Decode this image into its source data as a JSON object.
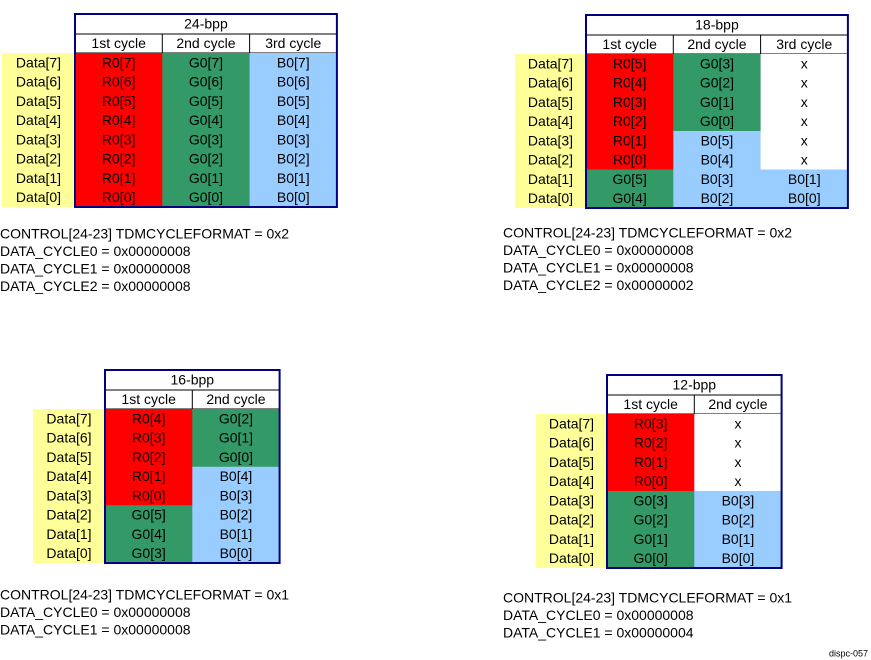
{
  "panels": [
    {
      "title": "24-bpp",
      "columns": [
        "1st cycle",
        "2nd cycle",
        "3rd cycle"
      ],
      "rows": [
        {
          "label": "Data[7]",
          "cells": [
            "R0[7]",
            "G0[7]",
            "B0[7]"
          ]
        },
        {
          "label": "Data[6]",
          "cells": [
            "R0[6]",
            "G0[6]",
            "B0[6]"
          ]
        },
        {
          "label": "Data[5]",
          "cells": [
            "R0[5]",
            "G0[5]",
            "B0[5]"
          ]
        },
        {
          "label": "Data[4]",
          "cells": [
            "R0[4]",
            "G0[4]",
            "B0[4]"
          ]
        },
        {
          "label": "Data[3]",
          "cells": [
            "R0[3]",
            "G0[3]",
            "B0[3]"
          ]
        },
        {
          "label": "Data[2]",
          "cells": [
            "R0[2]",
            "G0[2]",
            "B0[2]"
          ]
        },
        {
          "label": "Data[1]",
          "cells": [
            "R0[1]",
            "G0[1]",
            "B0[1]"
          ]
        },
        {
          "label": "Data[0]",
          "cells": [
            "R0[0]",
            "G0[0]",
            "B0[0]"
          ]
        }
      ],
      "config": [
        "CONTROL[24-23] TDMCYCLEFORMAT = 0x2",
        "DATA_CYCLE0 = 0x00000008",
        "DATA_CYCLE1 = 0x00000008",
        "DATA_CYCLE2 = 0x00000008"
      ]
    },
    {
      "title": "18-bpp",
      "columns": [
        "1st cycle",
        "2nd cycle",
        "3rd cycle"
      ],
      "rows": [
        {
          "label": "Data[7]",
          "cells": [
            "R0[5]",
            "G0[3]",
            "x"
          ]
        },
        {
          "label": "Data[6]",
          "cells": [
            "R0[4]",
            "G0[2]",
            "x"
          ]
        },
        {
          "label": "Data[5]",
          "cells": [
            "R0[3]",
            "G0[1]",
            "x"
          ]
        },
        {
          "label": "Data[4]",
          "cells": [
            "R0[2]",
            "G0[0]",
            "x"
          ]
        },
        {
          "label": "Data[3]",
          "cells": [
            "R0[1]",
            "B0[5]",
            "x"
          ]
        },
        {
          "label": "Data[2]",
          "cells": [
            "R0[0]",
            "B0[4]",
            "x"
          ]
        },
        {
          "label": "Data[1]",
          "cells": [
            "G0[5]",
            "B0[3]",
            "B0[1]"
          ]
        },
        {
          "label": "Data[0]",
          "cells": [
            "G0[4]",
            "B0[2]",
            "B0[0]"
          ]
        }
      ],
      "config": [
        "CONTROL[24-23] TDMCYCLEFORMAT = 0x2",
        "DATA_CYCLE0 = 0x00000008",
        "DATA_CYCLE1 = 0x00000008",
        "DATA_CYCLE2 = 0x00000002"
      ]
    },
    {
      "title": "16-bpp",
      "columns": [
        "1st cycle",
        "2nd cycle"
      ],
      "rows": [
        {
          "label": "Data[7]",
          "cells": [
            "R0[4]",
            "G0[2]"
          ]
        },
        {
          "label": "Data[6]",
          "cells": [
            "R0[3]",
            "G0[1]"
          ]
        },
        {
          "label": "Data[5]",
          "cells": [
            "R0[2]",
            "G0[0]"
          ]
        },
        {
          "label": "Data[4]",
          "cells": [
            "R0[1]",
            "B0[4]"
          ]
        },
        {
          "label": "Data[3]",
          "cells": [
            "R0[0]",
            "B0[3]"
          ]
        },
        {
          "label": "Data[2]",
          "cells": [
            "G0[5]",
            "B0[2]"
          ]
        },
        {
          "label": "Data[1]",
          "cells": [
            "G0[4]",
            "B0[1]"
          ]
        },
        {
          "label": "Data[0]",
          "cells": [
            "G0[3]",
            "B0[0]"
          ]
        }
      ],
      "config": [
        "CONTROL[24-23] TDMCYCLEFORMAT = 0x1",
        "DATA_CYCLE0 = 0x00000008",
        "DATA_CYCLE1 = 0x00000008"
      ]
    },
    {
      "title": "12-bpp",
      "columns": [
        "1st cycle",
        "2nd cycle"
      ],
      "rows": [
        {
          "label": "Data[7]",
          "cells": [
            "R0[3]",
            "x"
          ]
        },
        {
          "label": "Data[6]",
          "cells": [
            "R0[2]",
            "x"
          ]
        },
        {
          "label": "Data[5]",
          "cells": [
            "R0[1]",
            "x"
          ]
        },
        {
          "label": "Data[4]",
          "cells": [
            "R0[0]",
            "x"
          ]
        },
        {
          "label": "Data[3]",
          "cells": [
            "G0[3]",
            "B0[3]"
          ]
        },
        {
          "label": "Data[2]",
          "cells": [
            "G0[2]",
            "B0[2]"
          ]
        },
        {
          "label": "Data[1]",
          "cells": [
            "G0[1]",
            "B0[1]"
          ]
        },
        {
          "label": "Data[0]",
          "cells": [
            "G0[0]",
            "B0[0]"
          ]
        }
      ],
      "config": [
        "CONTROL[24-23] TDMCYCLEFORMAT = 0x1",
        "DATA_CYCLE0 = 0x00000008",
        "DATA_CYCLE1 = 0x00000004"
      ]
    }
  ],
  "footer": "dispc-057"
}
